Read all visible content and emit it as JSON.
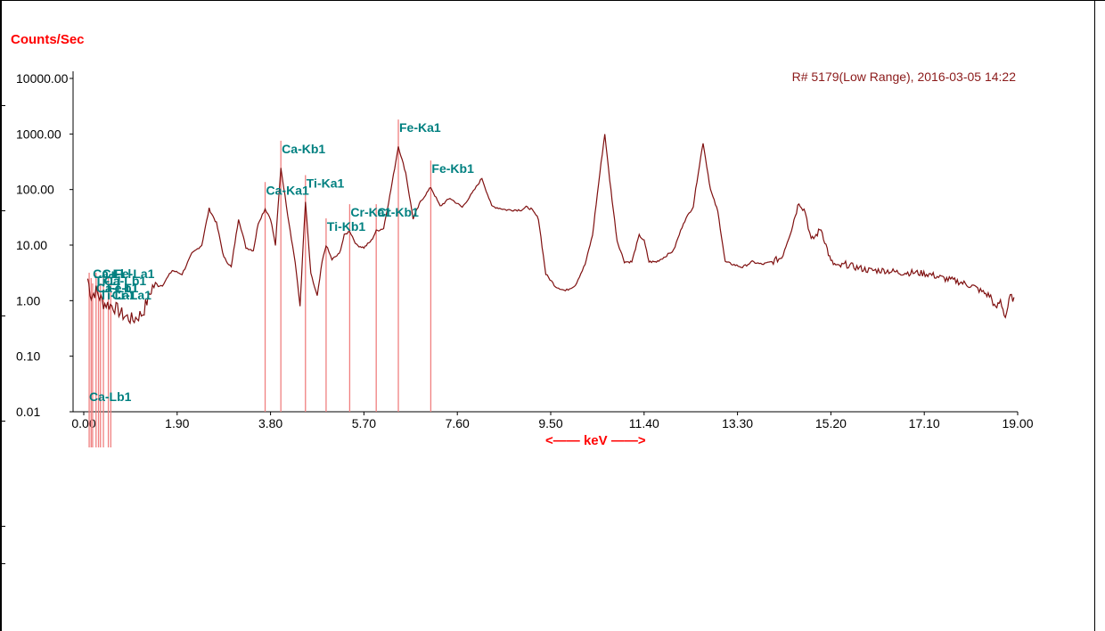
{
  "chart_data": {
    "type": "line",
    "ylabel": "Counts/Sec",
    "xlabel": "keV",
    "run_info": "R# 5179(Low Range), 2016-03-05 14:22",
    "y_scale": "log",
    "ylim": [
      0.01,
      10000
    ],
    "xlim": [
      0,
      19
    ],
    "y_ticks": [
      "10000.00",
      "1000.00",
      "100.00",
      "10.00",
      "1.00",
      "0.10",
      "0.01"
    ],
    "x_ticks": [
      "0.00",
      "1.90",
      "3.80",
      "5.70",
      "7.60",
      "9.50",
      "11.40",
      "13.30",
      "15.20",
      "17.10",
      "19.00"
    ],
    "grid": false,
    "colors": {
      "spectrum": "#7f1010",
      "marker_line": "#f08080",
      "marker_label": "#008080",
      "axis_label": "#ff0000"
    },
    "peak_markers": [
      {
        "label": "Ca-Ll",
        "energy": 0.11
      },
      {
        "label": "Ti-Ll",
        "energy": 0.15
      },
      {
        "label": "Ca-Lb1",
        "energy": 0.18
      },
      {
        "label": "Ti-La1",
        "energy": 0.25
      },
      {
        "label": "Cr-Ll",
        "energy": 0.3
      },
      {
        "label": "Ca-Lb1",
        "energy": 0.34
      },
      {
        "label": "Fe-Ll",
        "energy": 0.4
      },
      {
        "label": "Cr-La1",
        "energy": 0.5
      },
      {
        "label": "Fe-La1",
        "energy": 0.55
      },
      {
        "label": "Ca-Ka1",
        "energy": 3.69
      },
      {
        "label": "Ca-Kb1",
        "energy": 4.01
      },
      {
        "label": "Ti-Ka1",
        "energy": 4.51
      },
      {
        "label": "Ti-Kb1",
        "energy": 4.93
      },
      {
        "label": "Cr-Ka1",
        "energy": 5.41
      },
      {
        "label": "Cr-Kb1",
        "energy": 5.95
      },
      {
        "label": "Fe-Ka1",
        "energy": 6.4
      },
      {
        "label": "Fe-Kb1",
        "energy": 7.06
      }
    ],
    "series": [
      {
        "x": [
          0.08,
          0.15,
          0.25,
          0.4,
          0.6,
          0.8,
          1.0,
          1.2,
          1.4,
          1.6,
          1.8,
          2.0,
          2.2,
          2.4,
          2.55,
          2.7,
          2.85,
          3.0,
          3.15,
          3.3,
          3.45,
          3.55,
          3.69,
          3.8,
          3.9,
          4.01,
          4.15,
          4.3,
          4.4,
          4.51,
          4.62,
          4.75,
          4.85,
          4.93,
          5.05,
          5.2,
          5.3,
          5.41,
          5.55,
          5.7,
          5.85,
          5.95,
          6.1,
          6.25,
          6.4,
          6.55,
          6.7,
          6.85,
          7.06,
          7.25,
          7.45,
          7.7,
          7.9,
          8.1,
          8.3,
          8.6,
          8.9,
          9.0,
          9.1,
          9.25,
          9.4,
          9.6,
          9.8,
          10.0,
          10.2,
          10.35,
          10.5,
          10.6,
          10.7,
          10.85,
          11.0,
          11.15,
          11.3,
          11.4,
          11.5,
          11.65,
          11.8,
          12.0,
          12.2,
          12.4,
          12.5,
          12.6,
          12.75,
          12.9,
          13.05,
          13.2,
          13.4,
          13.6,
          13.8,
          14.0,
          14.2,
          14.4,
          14.55,
          14.68,
          14.8,
          14.9,
          15.0,
          15.1,
          15.2,
          15.35,
          15.5,
          15.7,
          16.0,
          16.3,
          16.6,
          16.9,
          17.2,
          17.5,
          17.8,
          18.1,
          18.3,
          18.45,
          18.55,
          18.65,
          18.75,
          18.85,
          18.95
        ],
        "y": [
          2.5,
          1.2,
          1.5,
          0.9,
          0.8,
          0.55,
          0.45,
          0.6,
          1.8,
          1.9,
          3.5,
          3.0,
          7.0,
          10.0,
          45.0,
          25.0,
          6.0,
          4.0,
          30.0,
          9.0,
          8.0,
          25.0,
          45.0,
          30.0,
          10.0,
          250.0,
          35.0,
          5.0,
          0.8,
          60.0,
          3.0,
          1.2,
          5.0,
          10.0,
          5.5,
          7.0,
          15.0,
          18.0,
          10.0,
          9.0,
          12.0,
          18.0,
          20.0,
          100.0,
          600.0,
          200.0,
          30.0,
          60.0,
          110.0,
          50.0,
          70.0,
          48.0,
          85.0,
          160.0,
          50.0,
          43.0,
          43.0,
          48.0,
          45.0,
          30.0,
          3.0,
          1.8,
          1.5,
          1.9,
          4.5,
          15.0,
          200.0,
          1000.0,
          150.0,
          12.0,
          5.0,
          5.0,
          15.0,
          12.0,
          5.0,
          5.0,
          6.0,
          8.0,
          25.0,
          50.0,
          200.0,
          700.0,
          100.0,
          40.0,
          5.0,
          4.5,
          4.0,
          5.0,
          4.5,
          5.0,
          6.0,
          20.0,
          60.0,
          40.0,
          12.0,
          15.0,
          20.0,
          10.0,
          5.0,
          4.0,
          4.5,
          4.0,
          3.5,
          3.5,
          3.2,
          3.2,
          3.0,
          2.5,
          2.2,
          1.8,
          1.4,
          1.2,
          0.7,
          1.0,
          0.5,
          1.2,
          1.0
        ]
      }
    ]
  }
}
